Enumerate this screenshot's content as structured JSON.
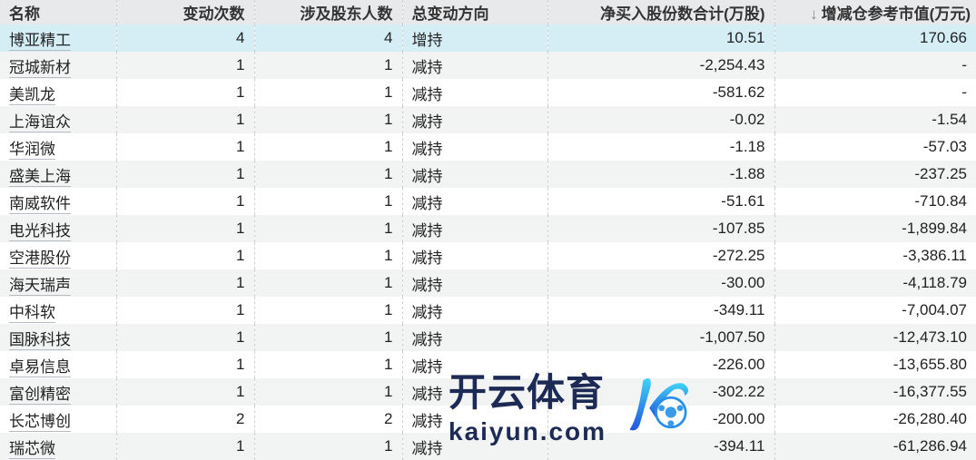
{
  "headers": [
    "名称",
    "变动次数",
    "涉及股东人数",
    "总变动方向",
    "净买入股份数合计(万股)",
    "增减仓参考市值(万元)"
  ],
  "sort_icon": "arrow-down-icon",
  "rows": [
    [
      "博亚精工",
      "4",
      "4",
      "增持",
      "10.51",
      "170.66"
    ],
    [
      "冠城新材",
      "1",
      "1",
      "减持",
      "-2,254.43",
      "-"
    ],
    [
      "美凯龙",
      "1",
      "1",
      "减持",
      "-581.62",
      "-"
    ],
    [
      "上海谊众",
      "1",
      "1",
      "减持",
      "-0.02",
      "-1.54"
    ],
    [
      "华润微",
      "1",
      "1",
      "减持",
      "-1.18",
      "-57.03"
    ],
    [
      "盛美上海",
      "1",
      "1",
      "减持",
      "-1.88",
      "-237.25"
    ],
    [
      "南威软件",
      "1",
      "1",
      "减持",
      "-51.61",
      "-710.84"
    ],
    [
      "电光科技",
      "1",
      "1",
      "减持",
      "-107.85",
      "-1,899.84"
    ],
    [
      "空港股份",
      "1",
      "1",
      "减持",
      "-272.25",
      "-3,386.11"
    ],
    [
      "海天瑞声",
      "1",
      "1",
      "减持",
      "-30.00",
      "-4,118.79"
    ],
    [
      "中科软",
      "1",
      "1",
      "减持",
      "-349.11",
      "-7,004.07"
    ],
    [
      "国脉科技",
      "1",
      "1",
      "减持",
      "-1,007.50",
      "-12,473.10"
    ],
    [
      "卓易信息",
      "1",
      "1",
      "减持",
      "-226.00",
      "-13,655.80"
    ],
    [
      "富创精密",
      "1",
      "1",
      "减持",
      "-302.22",
      "-16,377.55"
    ],
    [
      "长芯博创",
      "2",
      "2",
      "减持",
      "-200.00",
      "-26,280.40"
    ],
    [
      "瑞芯微",
      "1",
      "1",
      "减持",
      "-394.11",
      "-61,286.94"
    ]
  ],
  "watermark": {
    "cn": "开云体育",
    "en": "kaiyun.com"
  },
  "colors": {
    "header_bg": "#e8e9eb",
    "highlight_row": "#d5eef5",
    "alt_row": "#f2f3f3"
  }
}
